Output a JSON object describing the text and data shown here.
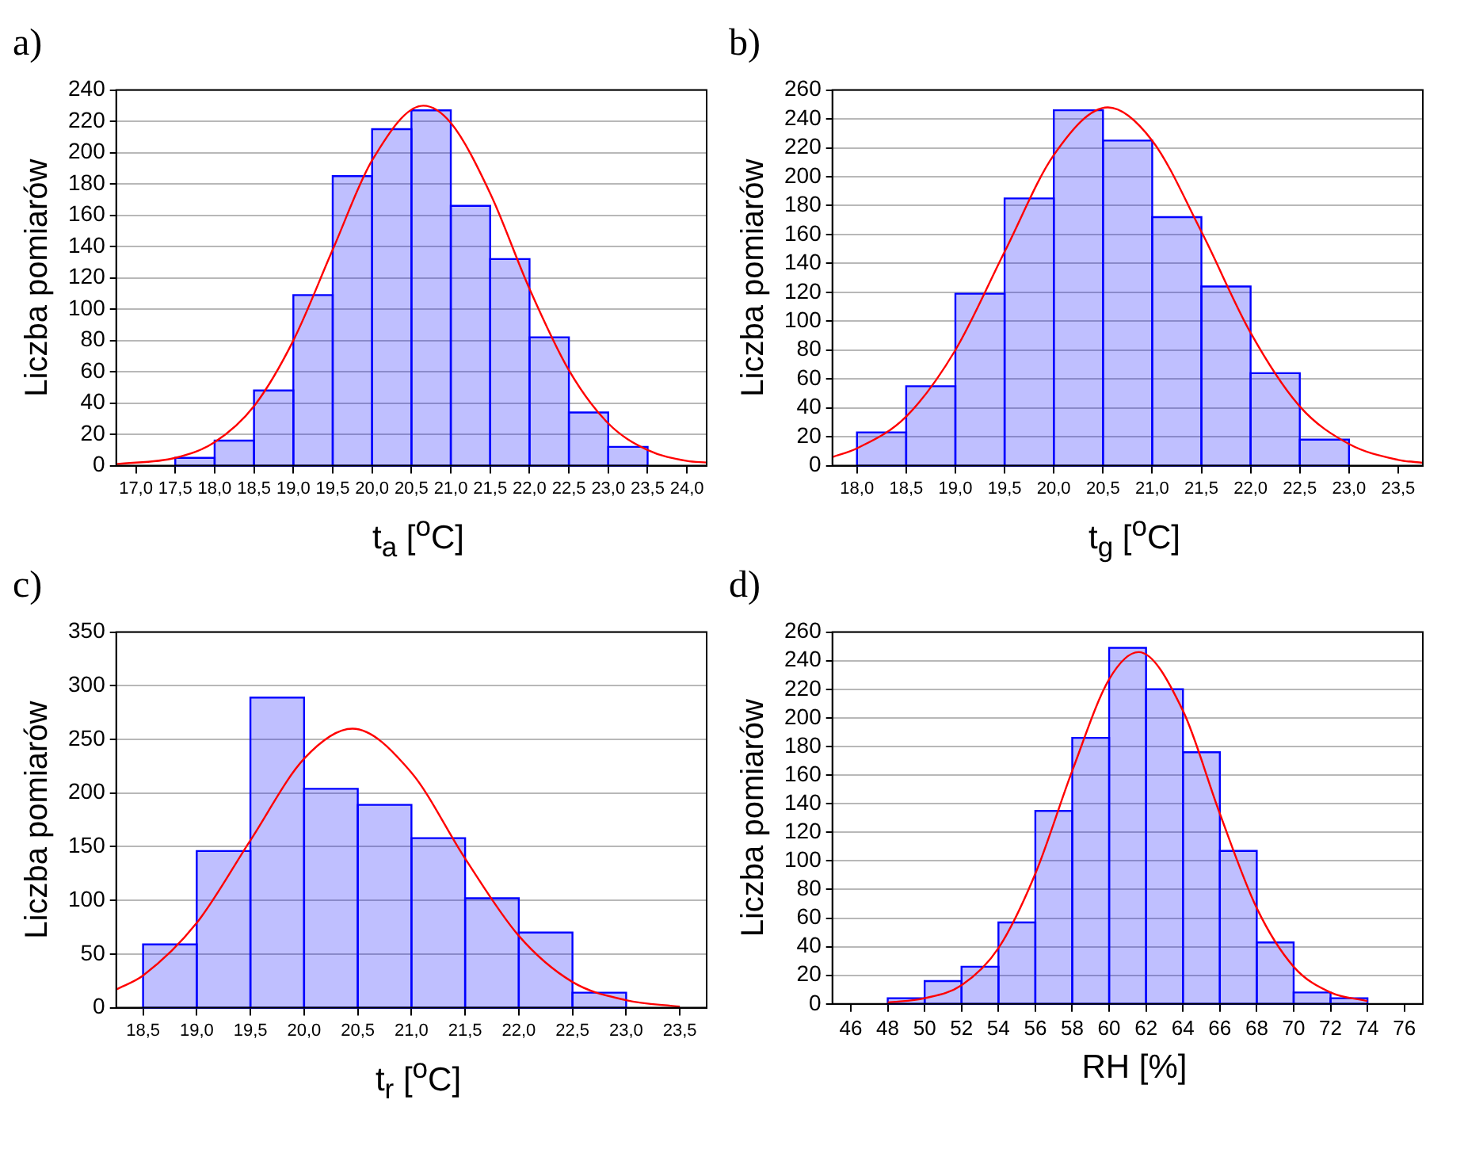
{
  "chart_data": [
    {
      "type": "histogram",
      "title": "a)",
      "xlabel": "t$_{a}$ [$^{o}$C]",
      "ylabel": "Liczba pomiarów",
      "color": "#0000ff",
      "grid": "y",
      "marker": "none",
      "bins": [
        17.5,
        18.0,
        18.5,
        19.0,
        19.5,
        20.0,
        20.5,
        21.0,
        21.5,
        22.0,
        22.5,
        23.0,
        23.5
      ],
      "values": [
        5,
        16,
        48,
        109,
        185,
        215,
        227,
        166,
        132,
        82,
        34,
        12
      ],
      "series": [
        {
          "type": "line",
          "color": "#ff0000",
          "x": [
            16.75,
            17.5,
            18.0,
            18.5,
            19.0,
            19.5,
            20.0,
            20.65,
            21.0,
            21.5,
            22.0,
            22.5,
            23.0,
            23.5,
            24.0,
            24.25
          ],
          "values": [
            1,
            5,
            15,
            38,
            80,
            138,
            195,
            230,
            219,
            174,
            113,
            61,
            27,
            10,
            3,
            2
          ]
        }
      ],
      "xlim": [
        16.75,
        24.25
      ],
      "xticks": [
        {
          "value": 17,
          "label": "17,0"
        },
        {
          "value": 17.5,
          "label": "17,5"
        },
        {
          "value": 18,
          "label": "18,0"
        },
        {
          "value": 18.5,
          "label": "18,5"
        },
        {
          "value": 19,
          "label": "19,0"
        },
        {
          "value": 19.5,
          "label": "19,5"
        },
        {
          "value": 20,
          "label": "20,0"
        },
        {
          "value": 20.5,
          "label": "20,5"
        },
        {
          "value": 21,
          "label": "21,0"
        },
        {
          "value": 21.5,
          "label": "21,5"
        },
        {
          "value": 22,
          "label": "22,0"
        },
        {
          "value": 22.5,
          "label": "22,5"
        },
        {
          "value": 23,
          "label": "23,0"
        },
        {
          "value": 23.5,
          "label": "23,5"
        },
        {
          "value": 24,
          "label": "24,0"
        }
      ],
      "ylim": [
        0,
        240
      ],
      "yticks": [
        0,
        20,
        40,
        60,
        80,
        100,
        120,
        140,
        160,
        180,
        200,
        220,
        240
      ]
    },
    {
      "type": "histogram",
      "title": "b)",
      "xlabel": "t$_{g}$ [$^{o}$C]",
      "ylabel": "Liczba pomiarów",
      "color": "#0000ff",
      "grid": "y",
      "marker": "none",
      "bins": [
        18.0,
        18.5,
        19.0,
        19.5,
        20.0,
        20.5,
        21.0,
        21.5,
        22.0,
        22.5,
        23.0
      ],
      "values": [
        23,
        55,
        119,
        185,
        246,
        225,
        172,
        124,
        64,
        18
      ],
      "series": [
        {
          "type": "line",
          "color": "#ff0000",
          "x": [
            17.75,
            18.0,
            18.5,
            19.0,
            19.5,
            20.0,
            20.55,
            21.0,
            21.5,
            22.0,
            22.5,
            23.0,
            23.5,
            23.75
          ],
          "values": [
            6,
            12,
            34,
            80,
            148,
            215,
            248,
            225,
            162,
            92,
            41,
            15,
            4,
            2
          ]
        }
      ],
      "xlim": [
        17.75,
        23.75
      ],
      "xticks": [
        {
          "value": 18,
          "label": "18,0"
        },
        {
          "value": 18.5,
          "label": "18,5"
        },
        {
          "value": 19,
          "label": "19,0"
        },
        {
          "value": 19.5,
          "label": "19,5"
        },
        {
          "value": 20,
          "label": "20,0"
        },
        {
          "value": 20.5,
          "label": "20,5"
        },
        {
          "value": 21,
          "label": "21,0"
        },
        {
          "value": 21.5,
          "label": "21,5"
        },
        {
          "value": 22,
          "label": "22,0"
        },
        {
          "value": 22.5,
          "label": "22,5"
        },
        {
          "value": 23,
          "label": "23,0"
        },
        {
          "value": 23.5,
          "label": "23,5"
        }
      ],
      "ylim": [
        0,
        260
      ],
      "yticks": [
        0,
        20,
        40,
        60,
        80,
        100,
        120,
        140,
        160,
        180,
        200,
        220,
        240,
        260
      ]
    },
    {
      "type": "histogram",
      "title": "c)",
      "xlabel": "t$_{r}$ [$^{o}$C]",
      "ylabel": "Liczba pomiarów",
      "color": "#0000ff",
      "grid": "y",
      "marker": "none",
      "bins": [
        18.5,
        19.0,
        19.5,
        20.0,
        20.5,
        21.0,
        21.5,
        22.0,
        22.5,
        23.0
      ],
      "values": [
        59,
        146,
        289,
        204,
        189,
        158,
        102,
        70,
        14
      ],
      "series": [
        {
          "type": "line",
          "color": "#ff0000",
          "x": [
            18.25,
            18.5,
            19.0,
            19.5,
            20.0,
            20.45,
            21.0,
            21.5,
            22.0,
            22.5,
            23.0,
            23.5
          ],
          "values": [
            17,
            30,
            79,
            156,
            232,
            260,
            219,
            139,
            67,
            24,
            7,
            1
          ]
        }
      ],
      "xlim": [
        18.25,
        23.75
      ],
      "xticks": [
        {
          "value": 18.5,
          "label": "18,5"
        },
        {
          "value": 19,
          "label": "19,0"
        },
        {
          "value": 19.5,
          "label": "19,5"
        },
        {
          "value": 20,
          "label": "20,0"
        },
        {
          "value": 20.5,
          "label": "20,5"
        },
        {
          "value": 21,
          "label": "21,0"
        },
        {
          "value": 21.5,
          "label": "21,5"
        },
        {
          "value": 22,
          "label": "22,0"
        },
        {
          "value": 22.5,
          "label": "22,5"
        },
        {
          "value": 23,
          "label": "23,0"
        },
        {
          "value": 23.5,
          "label": "23,5"
        }
      ],
      "ylim": [
        0,
        350
      ],
      "yticks": [
        0,
        50,
        100,
        150,
        200,
        250,
        300,
        350
      ]
    },
    {
      "type": "histogram",
      "title": "d)",
      "xlabel": "RH [%]",
      "ylabel": "Liczba pomiarów",
      "color": "#0000ff",
      "grid": "y",
      "marker": "none",
      "bins": [
        48,
        50,
        52,
        54,
        56,
        58,
        60,
        62,
        64,
        66,
        68,
        70,
        72,
        74
      ],
      "values": [
        4,
        16,
        26,
        57,
        135,
        186,
        249,
        220,
        176,
        107,
        43,
        8,
        4
      ],
      "series": [
        {
          "type": "line",
          "color": "#ff0000",
          "x": [
            48,
            50,
            52,
            54,
            56,
            58,
            60,
            61.6,
            64,
            66,
            68,
            70,
            72,
            74
          ],
          "values": [
            1,
            4,
            13,
            39,
            91,
            163,
            227,
            246,
            205,
            133,
            67,
            26,
            8,
            2
          ]
        }
      ],
      "xlim": [
        45,
        77
      ],
      "xticks": [
        46,
        48,
        50,
        52,
        54,
        56,
        58,
        60,
        62,
        64,
        66,
        68,
        70,
        72,
        74,
        76
      ],
      "ylim": [
        0,
        260
      ],
      "yticks": [
        0,
        20,
        40,
        60,
        80,
        100,
        120,
        140,
        160,
        180,
        200,
        220,
        240,
        260
      ]
    }
  ]
}
